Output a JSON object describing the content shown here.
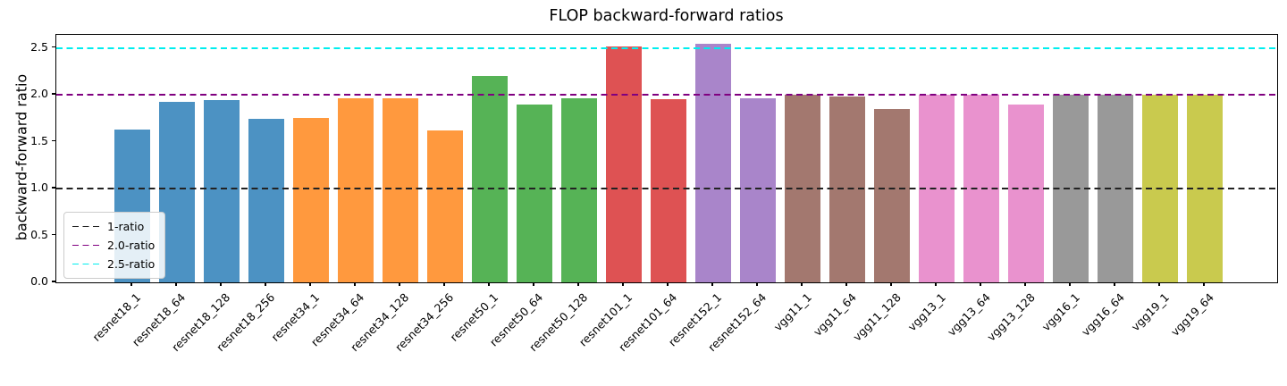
{
  "chart_data": {
    "type": "bar",
    "title": "FLOP backward-forward ratios",
    "xlabel": "",
    "ylabel": "backward-forward ratio",
    "ylim": [
      0,
      2.64
    ],
    "ytick_labels": [
      "0.0",
      "0.5",
      "1.0",
      "1.5",
      "2.0",
      "2.5"
    ],
    "grid": false,
    "legend_position": "lower left",
    "categories": [
      "resnet18_1",
      "resnet18_64",
      "resnet18_128",
      "resnet18_256",
      "resnet34_1",
      "resnet34_64",
      "resnet34_128",
      "resnet34_256",
      "resnet50_1",
      "resnet50_64",
      "resnet50_128",
      "resnet101_1",
      "resnet101_64",
      "resnet152_1",
      "resnet152_64",
      "vgg11_1",
      "vgg11_64",
      "vgg11_128",
      "vgg13_1",
      "vgg13_64",
      "vgg13_128",
      "vgg16_1",
      "vgg16_64",
      "vgg19_1",
      "vgg19_64"
    ],
    "values": [
      1.63,
      1.92,
      1.94,
      1.74,
      1.75,
      1.96,
      1.96,
      1.62,
      2.2,
      1.9,
      1.96,
      2.51,
      1.95,
      2.54,
      1.96,
      2.0,
      1.98,
      1.85,
      2.0,
      2.0,
      1.9,
      2.0,
      2.0,
      2.0,
      2.0
    ],
    "bar_colors": [
      "#4C92C3",
      "#4C92C3",
      "#4C92C3",
      "#4C92C3",
      "#FF993E",
      "#FF993E",
      "#FF993E",
      "#FF993E",
      "#56B356",
      "#56B356",
      "#56B356",
      "#DE5253",
      "#DE5253",
      "#A985CA",
      "#A985CA",
      "#A3786F",
      "#A3786F",
      "#A3786F",
      "#E992CE",
      "#E992CE",
      "#E992CE",
      "#999999",
      "#999999",
      "#C9CA4E",
      "#C9CA4E"
    ],
    "reference_lines": [
      {
        "label": "1-ratio",
        "value": 1.0,
        "color": "#222222"
      },
      {
        "label": "2.0-ratio",
        "value": 2.0,
        "color": "#800080"
      },
      {
        "label": "2.5-ratio",
        "value": 2.5,
        "color": "#00EEEE"
      }
    ]
  }
}
